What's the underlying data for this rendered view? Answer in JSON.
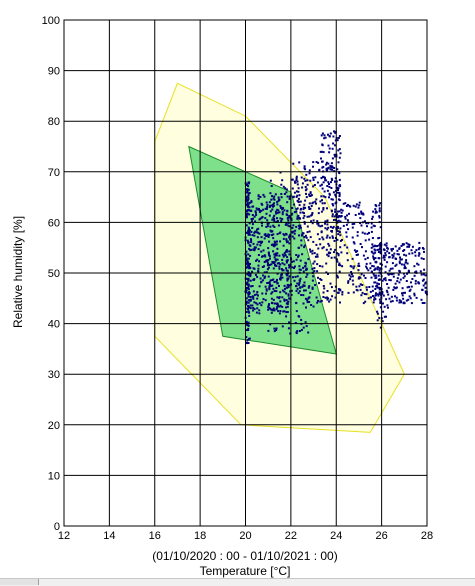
{
  "chart_data": {
    "type": "scatter",
    "xlabel": "Temperature [°C]",
    "date_range": "(01/10/2020 : 00 - 01/10/2021 : 00)",
    "ylabel": "Relative humidity [%]",
    "xlim": [
      12,
      28
    ],
    "ylim": [
      0,
      100
    ],
    "xticks": [
      "12",
      "14",
      "16",
      "18",
      "20",
      "22",
      "24",
      "26",
      "28"
    ],
    "yticks": [
      "0",
      "10",
      "20",
      "30",
      "40",
      "50",
      "60",
      "70",
      "80",
      "90",
      "100"
    ],
    "grid": true,
    "colors": {
      "outer_zone_fill": "#ffffe0",
      "outer_zone_stroke": "#e8e020",
      "inner_zone_fill": "#7ee08a",
      "inner_zone_stroke": "#1c8a2c",
      "points": "#00007a"
    },
    "zones": [
      {
        "id": "outer-zone",
        "points": [
          [
            17,
            87.5
          ],
          [
            20,
            81
          ],
          [
            23.5,
            65
          ],
          [
            27,
            30
          ],
          [
            25.5,
            18.5
          ],
          [
            19.8,
            20
          ],
          [
            16,
            37.5
          ],
          [
            16,
            76
          ]
        ]
      },
      {
        "id": "inner-zone",
        "points": [
          [
            17.5,
            75
          ],
          [
            22,
            66
          ],
          [
            24,
            34
          ],
          [
            19,
            37.5
          ]
        ]
      }
    ],
    "series": [
      {
        "type": "scatter",
        "clusters": [
          {
            "x": [
              20,
              20.2
            ],
            "y": [
              36,
              68
            ],
            "n": 160
          },
          {
            "x": [
              20.2,
              22
            ],
            "y": [
              42,
              66
            ],
            "n": 420
          },
          {
            "x": [
              21,
              23
            ],
            "y": [
              38,
              70
            ],
            "n": 160
          },
          {
            "x": [
              22,
              24.2
            ],
            "y": [
              44,
              72
            ],
            "n": 300
          },
          {
            "x": [
              23.3,
              24.2
            ],
            "y": [
              58,
              78
            ],
            "n": 120
          },
          {
            "x": [
              24,
              26
            ],
            "y": [
              44,
              64
            ],
            "n": 220
          },
          {
            "x": [
              25.5,
              28
            ],
            "y": [
              44,
              56
            ],
            "n": 260
          },
          {
            "x": [
              25.8,
              26.3
            ],
            "y": [
              39,
              44
            ],
            "n": 15
          }
        ]
      }
    ]
  }
}
